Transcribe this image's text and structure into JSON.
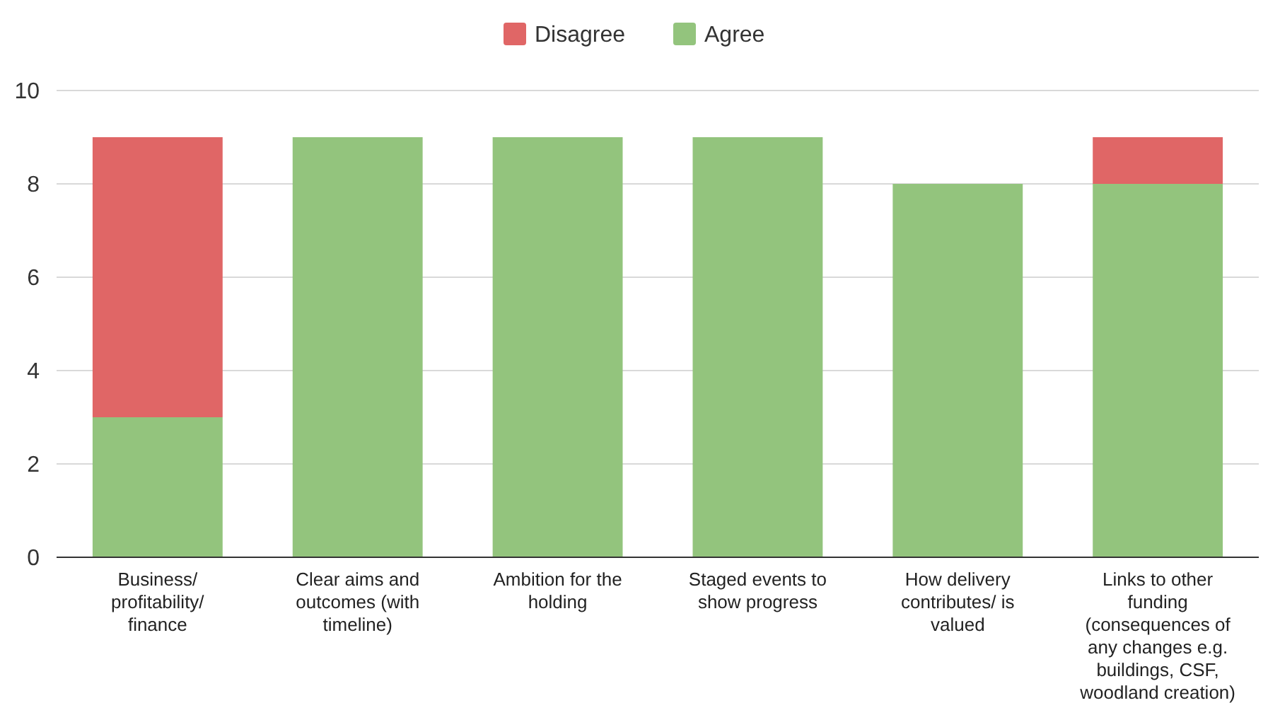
{
  "chart_data": {
    "type": "bar",
    "stacked": true,
    "categories": [
      "Business/ profitability/ finance",
      "Clear aims and outcomes (with timeline)",
      "Ambition for the holding",
      "Staged events to show progress",
      "How delivery contributes/ is valued",
      "Links to other funding (consequences of any changes e.g. buildings, CSF, woodland creation)"
    ],
    "series": [
      {
        "name": "Agree",
        "color": "#93c47d",
        "values": [
          3,
          9,
          9,
          9,
          8,
          8
        ]
      },
      {
        "name": "Disagree",
        "color": "#e06666",
        "values": [
          6,
          0,
          0,
          0,
          0,
          1
        ]
      }
    ],
    "ylim": [
      0,
      10
    ],
    "yticks": [
      0,
      2,
      4,
      6,
      8,
      10
    ],
    "grid": "y",
    "legend": "top"
  }
}
